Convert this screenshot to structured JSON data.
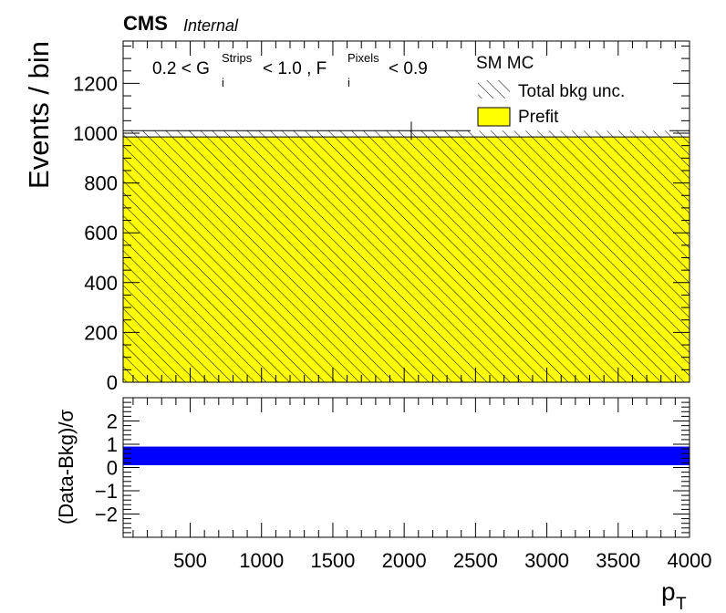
{
  "header": {
    "experiment": "CMS",
    "status": "Internal"
  },
  "selection": {
    "part1": "0.2 < G",
    "g_sup": "Strips",
    "g_sub": "i",
    "part2": " < 1.0 , F",
    "f_sup": "Pixels",
    "f_sub": "i",
    "part3": " < 0.9"
  },
  "legend": {
    "title": "SM MC",
    "unc_label": "Total bkg unc.",
    "prefit_label": "Prefit"
  },
  "colors": {
    "prefit_fill": "#ffff00",
    "pull_band": "#0000ff",
    "hatch": "#000000"
  },
  "chart_data": [
    {
      "type": "bar",
      "panel": "main",
      "ylabel": "Events / bin",
      "xlim": [
        30,
        4000
      ],
      "ylim": [
        0,
        1370
      ],
      "y_ticks": [
        0,
        200,
        400,
        600,
        800,
        1000,
        1200
      ],
      "series": [
        {
          "name": "Prefit",
          "bins": [
            [
              30,
              4000
            ]
          ],
          "values": [
            985
          ],
          "uncertainty": [
            25
          ]
        }
      ],
      "data_marker": {
        "x": 2050,
        "y": 1010
      },
      "legend_position": "top-right",
      "hatched_uncertainty": true
    },
    {
      "type": "bar",
      "panel": "ratio",
      "ylabel": "(Data-Bkg)/σ",
      "xlabel_main": "p",
      "xlabel_sub": "T",
      "xlim": [
        30,
        4000
      ],
      "ylim": [
        -3,
        3
      ],
      "y_ticks": [
        -2,
        -1,
        0,
        1,
        2
      ],
      "x_ticks": [
        500,
        1000,
        1500,
        2000,
        2500,
        3000,
        3500,
        4000
      ],
      "band": {
        "low": 0.1,
        "high": 0.9
      }
    }
  ]
}
